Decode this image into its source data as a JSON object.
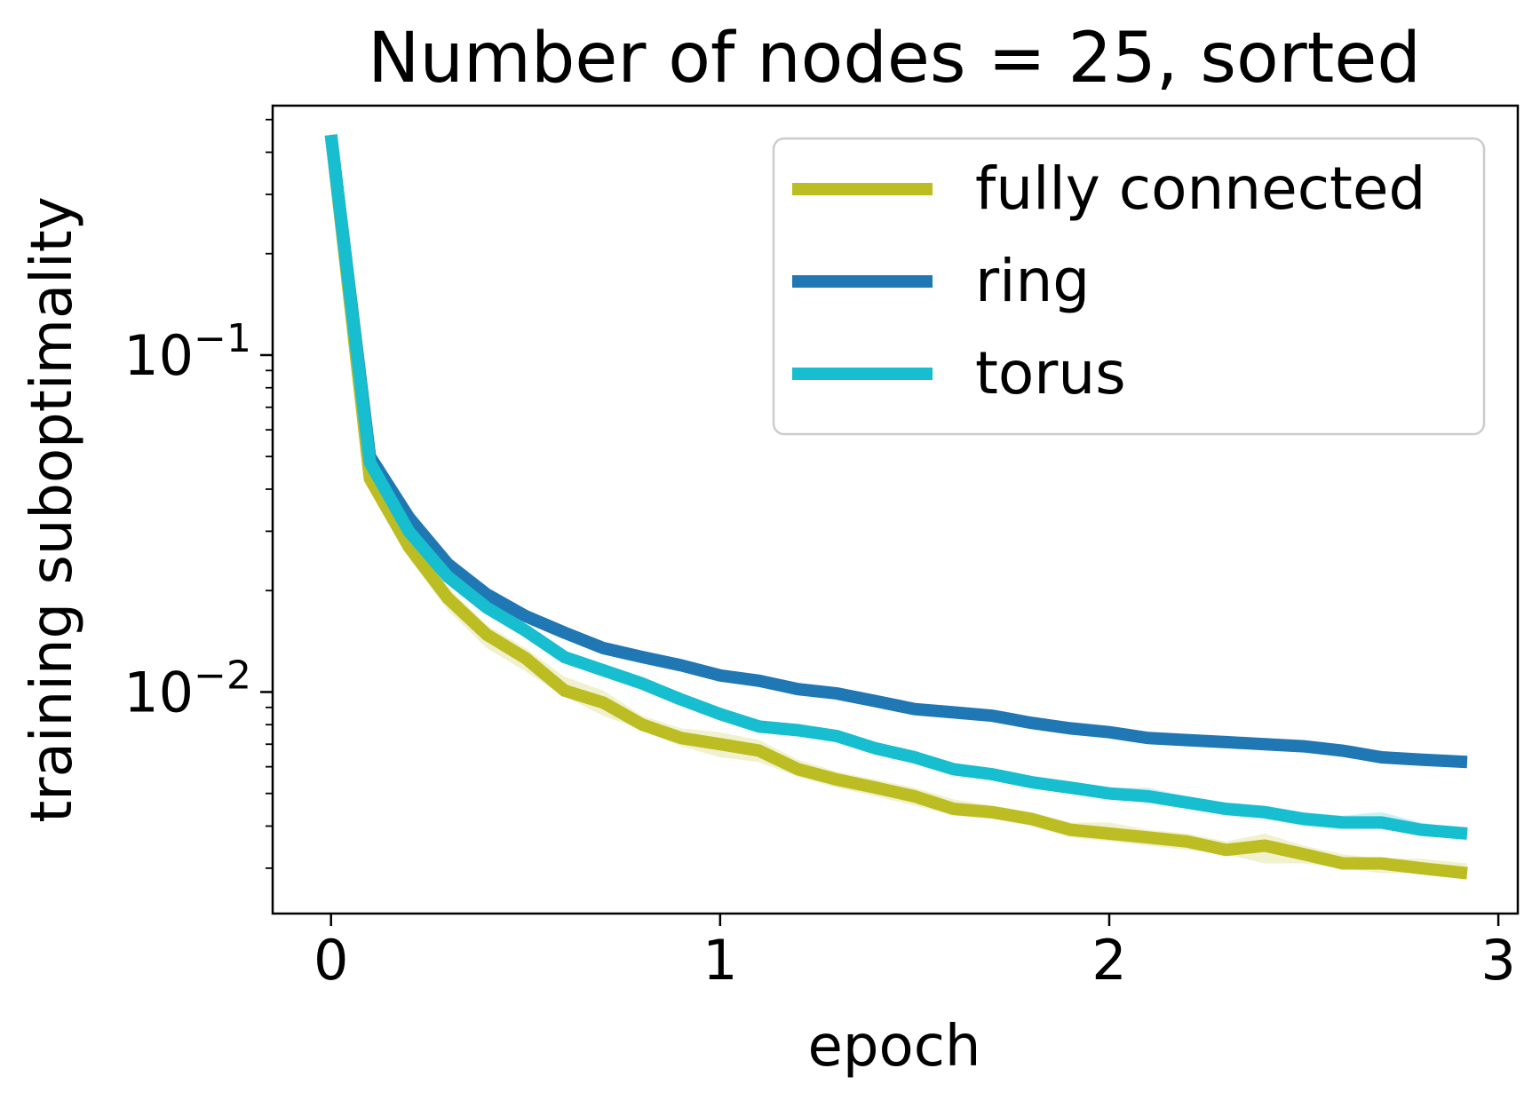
{
  "chart_data": {
    "type": "line",
    "title": "Number of nodes = 25, sorted",
    "xlabel": "epoch",
    "ylabel": "training suboptimality",
    "xlim": [
      -0.15,
      3.05
    ],
    "ylim": [
      0.0022,
      0.55
    ],
    "yscale": "log",
    "xticks": [
      {
        "value": 0,
        "label": "0"
      },
      {
        "value": 1,
        "label": "1"
      },
      {
        "value": 2,
        "label": "2"
      },
      {
        "value": 3,
        "label": "3"
      }
    ],
    "yticks": [
      {
        "value": 0.1,
        "base": "10",
        "exp": "−1"
      },
      {
        "value": 0.01,
        "base": "10",
        "exp": "−2"
      }
    ],
    "legend_position": "top-right",
    "grid": false,
    "x": [
      0,
      0.1,
      0.2,
      0.3,
      0.4,
      0.5,
      0.6,
      0.7,
      0.8,
      0.9,
      1.0,
      1.1,
      1.2,
      1.3,
      1.4,
      1.5,
      1.6,
      1.7,
      1.8,
      1.9,
      2.0,
      2.1,
      2.2,
      2.3,
      2.4,
      2.5,
      2.6,
      2.7,
      2.8,
      2.92
    ],
    "series": [
      {
        "name": "fully connected",
        "color": "#bcbd22",
        "values": [
          0.45,
          0.043,
          0.027,
          0.019,
          0.0148,
          0.0126,
          0.0101,
          0.0093,
          0.008,
          0.0073,
          0.007,
          0.0067,
          0.0059,
          0.0055,
          0.0052,
          0.0049,
          0.0045,
          0.0044,
          0.0042,
          0.0039,
          0.0038,
          0.0037,
          0.0036,
          0.0034,
          0.0035,
          0.0033,
          0.0031,
          0.0031,
          0.003,
          0.0029
        ],
        "band_lower": [
          0.44,
          0.041,
          0.025,
          0.0175,
          0.0135,
          0.0115,
          0.0097,
          0.0085,
          0.0077,
          0.0069,
          0.0064,
          0.0062,
          0.0056,
          0.0052,
          0.0049,
          0.0046,
          0.0043,
          0.0042,
          0.004,
          0.0037,
          0.0036,
          0.0035,
          0.0034,
          0.0033,
          0.0031,
          0.0031,
          0.003,
          0.0029,
          0.0029,
          0.0028
        ],
        "band_upper": [
          0.46,
          0.045,
          0.029,
          0.0205,
          0.0158,
          0.0135,
          0.0111,
          0.0101,
          0.0085,
          0.0078,
          0.0076,
          0.0072,
          0.0063,
          0.0058,
          0.0055,
          0.0052,
          0.0048,
          0.0046,
          0.0044,
          0.0041,
          0.0041,
          0.0039,
          0.0038,
          0.0036,
          0.0038,
          0.0035,
          0.0033,
          0.0032,
          0.0032,
          0.0031
        ]
      },
      {
        "name": "ring",
        "color": "#1f77b4",
        "values": [
          0.45,
          0.05,
          0.033,
          0.024,
          0.0195,
          0.0168,
          0.015,
          0.0135,
          0.0127,
          0.012,
          0.0112,
          0.0108,
          0.0102,
          0.0099,
          0.0094,
          0.0089,
          0.0087,
          0.0085,
          0.0081,
          0.0078,
          0.0076,
          0.0073,
          0.0072,
          0.0071,
          0.007,
          0.0069,
          0.0067,
          0.0064,
          0.0063,
          0.0062
        ],
        "band_lower": [
          0.44,
          0.049,
          0.032,
          0.023,
          0.0188,
          0.0163,
          0.0145,
          0.0131,
          0.0123,
          0.0116,
          0.0108,
          0.0104,
          0.0099,
          0.0096,
          0.0091,
          0.0087,
          0.0085,
          0.0083,
          0.0079,
          0.0076,
          0.0074,
          0.0071,
          0.007,
          0.0069,
          0.0068,
          0.0067,
          0.0065,
          0.0062,
          0.0061,
          0.006
        ],
        "band_upper": [
          0.46,
          0.051,
          0.034,
          0.025,
          0.0202,
          0.0174,
          0.0155,
          0.014,
          0.0131,
          0.0124,
          0.0116,
          0.0112,
          0.0106,
          0.0103,
          0.0097,
          0.0092,
          0.009,
          0.0088,
          0.0083,
          0.0081,
          0.0078,
          0.0075,
          0.0074,
          0.0073,
          0.0072,
          0.0072,
          0.0069,
          0.0066,
          0.0065,
          0.0064
        ]
      },
      {
        "name": "torus",
        "color": "#17becf",
        "values": [
          0.45,
          0.048,
          0.03,
          0.022,
          0.0178,
          0.0152,
          0.0127,
          0.0116,
          0.0106,
          0.0095,
          0.0086,
          0.0079,
          0.0077,
          0.0074,
          0.0068,
          0.0064,
          0.0059,
          0.0057,
          0.0054,
          0.0052,
          0.005,
          0.0049,
          0.0047,
          0.0045,
          0.0044,
          0.0042,
          0.0041,
          0.0041,
          0.0039,
          0.0038
        ],
        "band_lower": [
          0.44,
          0.047,
          0.029,
          0.021,
          0.0171,
          0.0146,
          0.0122,
          0.0111,
          0.0102,
          0.0091,
          0.0083,
          0.0076,
          0.0074,
          0.0071,
          0.0066,
          0.0062,
          0.0057,
          0.0055,
          0.0052,
          0.005,
          0.0048,
          0.0047,
          0.0045,
          0.0043,
          0.0042,
          0.004,
          0.0039,
          0.0039,
          0.0038,
          0.0037
        ],
        "band_upper": [
          0.46,
          0.049,
          0.031,
          0.023,
          0.0185,
          0.0158,
          0.0132,
          0.0121,
          0.011,
          0.0099,
          0.0089,
          0.0082,
          0.008,
          0.0077,
          0.0071,
          0.0067,
          0.0061,
          0.0059,
          0.0056,
          0.0054,
          0.0052,
          0.0052,
          0.0049,
          0.0047,
          0.0046,
          0.0044,
          0.0043,
          0.0044,
          0.0041,
          0.0039
        ]
      }
    ]
  }
}
